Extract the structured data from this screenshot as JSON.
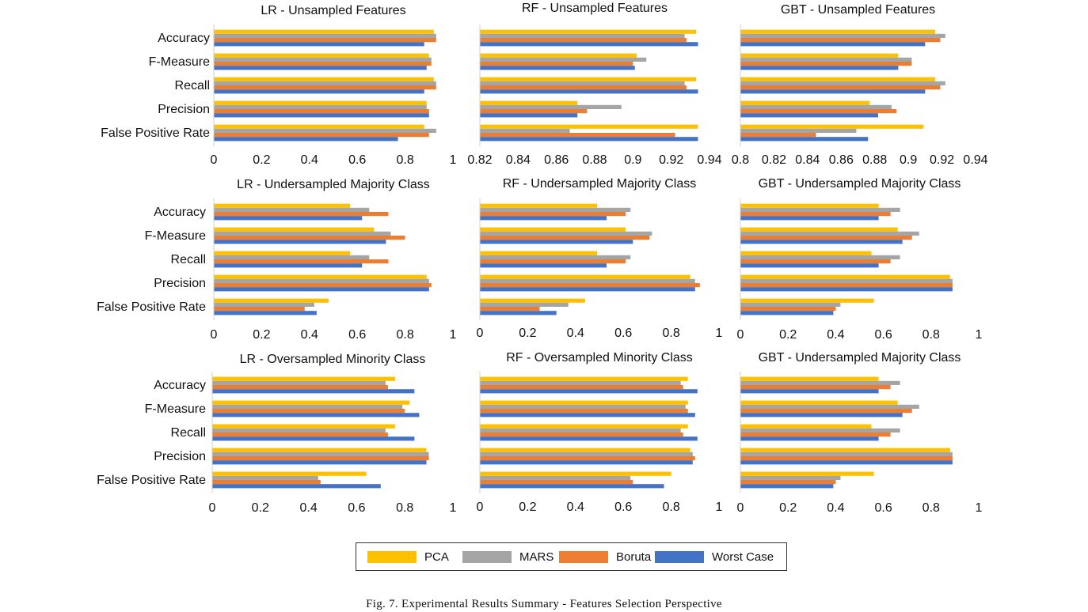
{
  "caption": "Fig. 7.  Experimental Results Summary - Features Selection Perspective",
  "legend": [
    {
      "name": "PCA",
      "color": "#FFC000"
    },
    {
      "name": "MARS",
      "color": "#A5A5A5"
    },
    {
      "name": "Boruta",
      "color": "#ED7D31"
    },
    {
      "name": "Worst Case",
      "color": "#4472C4"
    }
  ],
  "chart_data": [
    {
      "type": "bar",
      "orientation": "horizontal",
      "title": "LR - Unsampled Features",
      "categories": [
        "Accuracy",
        "F-Measure",
        "Recall",
        "Precision",
        "False Positive Rate"
      ],
      "xlim": [
        0,
        1
      ],
      "ticks": [
        "0",
        "0.2",
        "0.4",
        "0.6",
        "0.8",
        "1"
      ],
      "grid": false,
      "series": [
        {
          "name": "PCA",
          "values": [
            0.92,
            0.9,
            0.92,
            0.89,
            0.88
          ]
        },
        {
          "name": "MARS",
          "values": [
            0.93,
            0.91,
            0.93,
            0.89,
            0.93
          ]
        },
        {
          "name": "Boruta",
          "values": [
            0.93,
            0.91,
            0.93,
            0.9,
            0.9
          ]
        },
        {
          "name": "Worst Case",
          "values": [
            0.88,
            0.89,
            0.88,
            0.9,
            0.77
          ]
        }
      ]
    },
    {
      "type": "bar",
      "orientation": "horizontal",
      "title": "RF - Unsampled Features",
      "categories": [
        "Accuracy",
        "F-Measure",
        "Recall",
        "Precision",
        "False Positive Rate"
      ],
      "xlim": [
        0.82,
        0.94
      ],
      "ticks": [
        "0.82",
        "0.84",
        "0.86",
        "0.88",
        "0.9",
        "0.92",
        "0.94"
      ],
      "grid": false,
      "series": [
        {
          "name": "PCA",
          "values": [
            0.933,
            0.902,
            0.933,
            0.871,
            0.934
          ]
        },
        {
          "name": "MARS",
          "values": [
            0.927,
            0.907,
            0.927,
            0.894,
            0.867
          ]
        },
        {
          "name": "Boruta",
          "values": [
            0.928,
            0.9,
            0.928,
            0.876,
            0.922
          ]
        },
        {
          "name": "Worst Case",
          "values": [
            0.934,
            0.901,
            0.934,
            0.871,
            0.934
          ]
        }
      ]
    },
    {
      "type": "bar",
      "orientation": "horizontal",
      "title": "GBT - Unsampled Features",
      "categories": [
        "Accuracy",
        "F-Measure",
        "Recall",
        "Precision",
        "False Positive Rate"
      ],
      "xlim": [
        0.8,
        0.94
      ],
      "ticks": [
        "0.8",
        "0.82",
        "0.84",
        "0.86",
        "0.88",
        "0.9",
        "0.92",
        "0.94"
      ],
      "grid": false,
      "series": [
        {
          "name": "PCA",
          "values": [
            0.916,
            0.894,
            0.916,
            0.877,
            0.909
          ]
        },
        {
          "name": "MARS",
          "values": [
            0.922,
            0.902,
            0.922,
            0.89,
            0.869
          ]
        },
        {
          "name": "Boruta",
          "values": [
            0.919,
            0.902,
            0.919,
            0.893,
            0.845
          ]
        },
        {
          "name": "Worst Case",
          "values": [
            0.91,
            0.894,
            0.91,
            0.882,
            0.876
          ]
        }
      ]
    },
    {
      "type": "bar",
      "orientation": "horizontal",
      "title": "LR - Undersampled Majority Class",
      "categories": [
        "Accuracy",
        "F-Measure",
        "Recall",
        "Precision",
        "False Positive Rate"
      ],
      "xlim": [
        0,
        1
      ],
      "ticks": [
        "0",
        "0.2",
        "0.4",
        "0.6",
        "0.8",
        "1"
      ],
      "grid": false,
      "series": [
        {
          "name": "PCA",
          "values": [
            0.57,
            0.67,
            0.57,
            0.89,
            0.48
          ]
        },
        {
          "name": "MARS",
          "values": [
            0.65,
            0.74,
            0.65,
            0.9,
            0.42
          ]
        },
        {
          "name": "Boruta",
          "values": [
            0.73,
            0.8,
            0.73,
            0.91,
            0.38
          ]
        },
        {
          "name": "Worst Case",
          "values": [
            0.62,
            0.72,
            0.62,
            0.9,
            0.43
          ]
        }
      ]
    },
    {
      "type": "bar",
      "orientation": "horizontal",
      "title": "RF - Undersampled Majority Class",
      "categories": [
        "Accuracy",
        "F-Measure",
        "Recall",
        "Precision",
        "False Positive Rate"
      ],
      "xlim": [
        0,
        1
      ],
      "ticks": [
        "0",
        "0.2",
        "0.4",
        "0.6",
        "0.8",
        "1"
      ],
      "grid": false,
      "series": [
        {
          "name": "PCA",
          "values": [
            0.49,
            0.61,
            0.49,
            0.88,
            0.44
          ]
        },
        {
          "name": "MARS",
          "values": [
            0.63,
            0.72,
            0.63,
            0.9,
            0.37
          ]
        },
        {
          "name": "Boruta",
          "values": [
            0.61,
            0.71,
            0.61,
            0.92,
            0.25
          ]
        },
        {
          "name": "Worst Case",
          "values": [
            0.53,
            0.64,
            0.53,
            0.9,
            0.32
          ]
        }
      ]
    },
    {
      "type": "bar",
      "orientation": "horizontal",
      "title": "GBT - Undersampled Majority Class",
      "categories": [
        "Accuracy",
        "F-Measure",
        "Recall",
        "Precision",
        "False Positive Rate"
      ],
      "xlim": [
        0,
        1
      ],
      "ticks": [
        "0",
        "0.2",
        "0.4",
        "0.6",
        "0.8",
        "1"
      ],
      "grid": false,
      "series": [
        {
          "name": "PCA",
          "values": [
            0.58,
            0.66,
            0.55,
            0.88,
            0.56
          ]
        },
        {
          "name": "MARS",
          "values": [
            0.67,
            0.75,
            0.67,
            0.89,
            0.42
          ]
        },
        {
          "name": "Boruta",
          "values": [
            0.63,
            0.72,
            0.63,
            0.89,
            0.4
          ]
        },
        {
          "name": "Worst Case",
          "values": [
            0.58,
            0.68,
            0.58,
            0.89,
            0.39
          ]
        }
      ]
    },
    {
      "type": "bar",
      "orientation": "horizontal",
      "title": "LR - Oversampled Minority Class",
      "categories": [
        "Accuracy",
        "F-Measure",
        "Recall",
        "Precision",
        "False Positive Rate"
      ],
      "xlim": [
        0,
        1
      ],
      "ticks": [
        "0",
        "0.2",
        "0.4",
        "0.6",
        "0.8",
        "1"
      ],
      "grid": false,
      "series": [
        {
          "name": "PCA",
          "values": [
            0.76,
            0.82,
            0.76,
            0.89,
            0.64
          ]
        },
        {
          "name": "MARS",
          "values": [
            0.72,
            0.79,
            0.72,
            0.9,
            0.44
          ]
        },
        {
          "name": "Boruta",
          "values": [
            0.73,
            0.8,
            0.73,
            0.9,
            0.45
          ]
        },
        {
          "name": "Worst Case",
          "values": [
            0.84,
            0.86,
            0.84,
            0.89,
            0.7
          ]
        }
      ]
    },
    {
      "type": "bar",
      "orientation": "horizontal",
      "title": "RF - Oversampled Minority Class",
      "categories": [
        "Accuracy",
        "F-Measure",
        "Recall",
        "Precision",
        "False Positive Rate"
      ],
      "xlim": [
        0,
        1
      ],
      "ticks": [
        "0",
        "0.2",
        "0.4",
        "0.6",
        "0.8",
        "1"
      ],
      "grid": false,
      "series": [
        {
          "name": "PCA",
          "values": [
            0.87,
            0.87,
            0.87,
            0.88,
            0.8
          ]
        },
        {
          "name": "MARS",
          "values": [
            0.84,
            0.86,
            0.84,
            0.89,
            0.63
          ]
        },
        {
          "name": "Boruta",
          "values": [
            0.85,
            0.87,
            0.85,
            0.9,
            0.64
          ]
        },
        {
          "name": "Worst Case",
          "values": [
            0.91,
            0.9,
            0.91,
            0.89,
            0.77
          ]
        }
      ]
    },
    {
      "type": "bar",
      "orientation": "horizontal",
      "title": "GBT - Undersampled Majority Class",
      "categories": [
        "Accuracy",
        "F-Measure",
        "Recall",
        "Precision",
        "False Positive Rate"
      ],
      "xlim": [
        0,
        1
      ],
      "ticks": [
        "0",
        "0.2",
        "0.4",
        "0.6",
        "0.8",
        "1"
      ],
      "grid": false,
      "series": [
        {
          "name": "PCA",
          "values": [
            0.58,
            0.66,
            0.55,
            0.88,
            0.56
          ]
        },
        {
          "name": "MARS",
          "values": [
            0.67,
            0.75,
            0.67,
            0.89,
            0.42
          ]
        },
        {
          "name": "Boruta",
          "values": [
            0.63,
            0.72,
            0.63,
            0.89,
            0.4
          ]
        },
        {
          "name": "Worst Case",
          "values": [
            0.58,
            0.68,
            0.58,
            0.89,
            0.39
          ]
        }
      ]
    }
  ]
}
